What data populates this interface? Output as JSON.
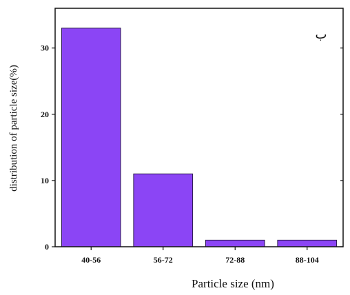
{
  "chart_data": {
    "type": "bar",
    "categories": [
      "40-56",
      "56-72",
      "72-88",
      "88-104"
    ],
    "values": [
      33,
      11,
      1,
      1
    ],
    "xlabel": "Particle size (nm)",
    "ylabel": "distribution of particle size(%)",
    "ylim": [
      0,
      36
    ],
    "yticks": [
      0,
      10,
      20,
      30
    ],
    "annotation": "ب",
    "grid": false,
    "colors": {
      "bar": "#8b45f5",
      "bar_edge": "#2a1a4a",
      "axis": "#111111"
    }
  }
}
